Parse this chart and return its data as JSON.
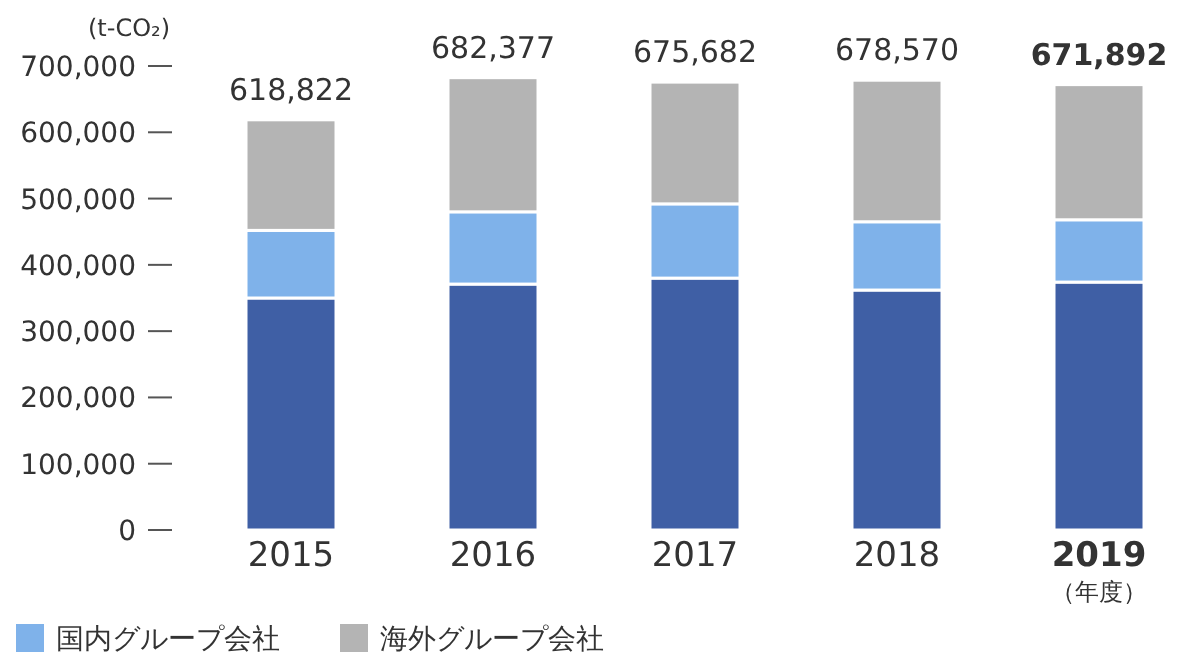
{
  "chart_data": {
    "type": "bar",
    "stacked": true,
    "ylabel": "(t-CO₂)",
    "categories": [
      "2015",
      "2016",
      "2017",
      "2018",
      "2019"
    ],
    "series": [
      {
        "color": "#3f5fa5",
        "values": [
          350000,
          371000,
          380000,
          362000,
          374000
        ]
      },
      {
        "name": "国内グループ会社",
        "color": "#7fb2ea",
        "values": [
          102000,
          109000,
          112000,
          103000,
          94000
        ]
      },
      {
        "name": "海外グループ会社",
        "color": "#b4b4b4",
        "values": [
          166822,
          202377,
          183682,
          213570,
          203892
        ]
      }
    ],
    "totals": [
      "618,822",
      "682,377",
      "675,682",
      "678,570",
      "671,892"
    ],
    "ylim": [
      0,
      700000
    ],
    "yticks": [
      0,
      {
        "value": 100000,
        "label": "100,000"
      },
      {
        "value": 200000,
        "label": "200,000"
      },
      {
        "value": 300000,
        "label": "300,000"
      },
      {
        "value": 400000,
        "label": "400,000"
      },
      {
        "value": 500000,
        "label": "500,000"
      },
      {
        "value": 600000,
        "label": "600,000"
      },
      {
        "value": 700000,
        "label": "700,000"
      }
    ],
    "grid": false,
    "legend": "bottom",
    "annotations": [
      "（年度）"
    ]
  }
}
